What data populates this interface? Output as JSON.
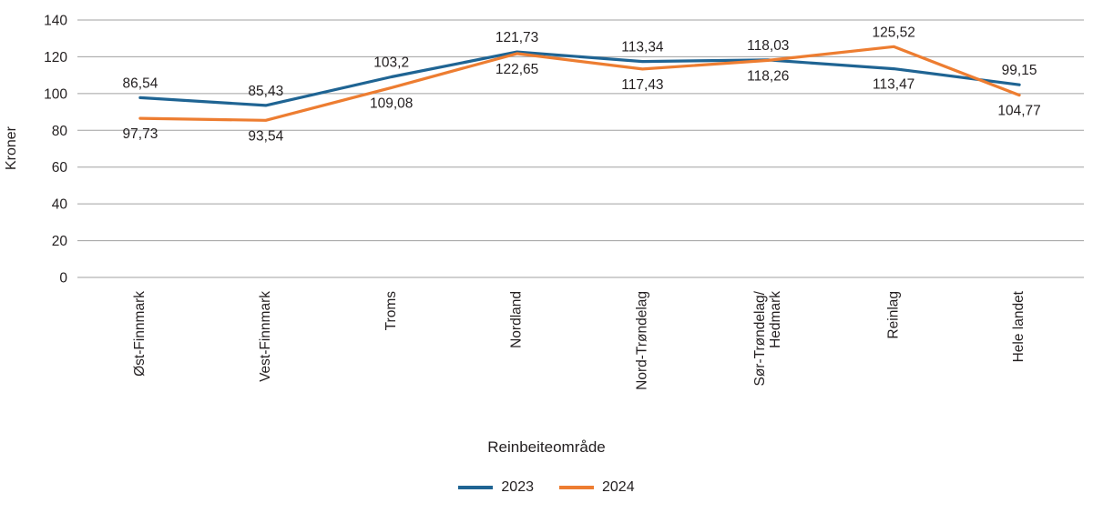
{
  "page": {
    "background_color": "#ffffff",
    "text_color": "#231f20"
  },
  "chart_data": {
    "type": "line",
    "title": "",
    "xlabel": "Reinbeiteområde",
    "ylabel": "Kroner",
    "ylim": [
      0,
      140
    ],
    "ytick_step": 20,
    "ytick_labels": [
      "0",
      "20",
      "40",
      "60",
      "80",
      "100",
      "120",
      "140"
    ],
    "grid": true,
    "grid_color": "#a0a0a0",
    "legend_position": "bottom-center",
    "decimal_separator": ",",
    "categories": [
      "Øst-Finnmark",
      "Vest-Finnmark",
      "Troms",
      "Nordland",
      "Nord-Trøndelag",
      "Sør-Trøndelag/\nHedmark",
      "Reinlag",
      "Hele landet"
    ],
    "series": [
      {
        "name": "2023",
        "color": "#1f6493",
        "label_position": "below",
        "values": [
          97.73,
          93.54,
          109.08,
          122.65,
          117.43,
          118.26,
          113.47,
          104.77
        ],
        "labels": [
          "97,73",
          "93,54",
          "109,08",
          "122,65",
          "117,43",
          "118,26",
          "113,47",
          "104,77"
        ]
      },
      {
        "name": "2024",
        "color": "#ed7d31",
        "label_position": "above",
        "values": [
          86.54,
          85.43,
          103.2,
          121.73,
          113.34,
          118.03,
          125.52,
          99.15
        ],
        "labels": [
          "86,54",
          "85,43",
          "103,2",
          "121,73",
          "113,34",
          "118,03",
          "125,52",
          "99,15"
        ]
      }
    ]
  }
}
